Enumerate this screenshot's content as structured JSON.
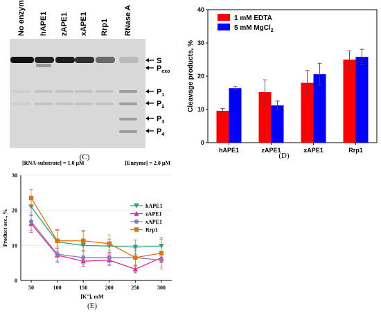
{
  "panels": {
    "c_label": "(C)",
    "d_label": "(D)",
    "e_label": "(E)"
  },
  "gel": {
    "lanes": [
      "No enzyme",
      "hAPE1",
      "zAPE1",
      "xAPE1",
      "Rrp1",
      "RNase A"
    ],
    "band_labels": [
      {
        "main": "S",
        "sub": ""
      },
      {
        "main": "P",
        "sub": "exo"
      },
      {
        "main": "P",
        "sub": "1"
      },
      {
        "main": "P",
        "sub": "2"
      },
      {
        "main": "P",
        "sub": "3"
      },
      {
        "main": "P",
        "sub": "4"
      }
    ],
    "colors": {
      "background": "#d8d8d8",
      "band": "#111111"
    }
  },
  "chart_data": [
    {
      "id": "D",
      "type": "bar",
      "categories": [
        "hAPE1",
        "zAPE1",
        "xAPE1",
        "Rrp1"
      ],
      "series": [
        {
          "name": "1 mM EDTA",
          "color": "#ff0000",
          "values": [
            9.6,
            15.2,
            18.0,
            25.0
          ],
          "errors": [
            0.7,
            3.7,
            3.7,
            2.6
          ]
        },
        {
          "name": "5 mM MgCl",
          "name_sub": "2",
          "color": "#0000ff",
          "values": [
            16.4,
            11.2,
            20.6,
            25.8
          ],
          "errors": [
            0.5,
            1.3,
            3.3,
            2.3
          ]
        }
      ],
      "ylabel": "Cleavage products, %",
      "ylim": [
        0,
        40
      ],
      "yticks": [
        0,
        10,
        20,
        30,
        40
      ],
      "legend": "top-left"
    },
    {
      "id": "E",
      "type": "line",
      "x": [
        50,
        100,
        150,
        200,
        250,
        300
      ],
      "xticks": [
        50,
        100,
        150,
        200,
        250,
        300
      ],
      "xlim": [
        30,
        320
      ],
      "ylim": [
        0,
        30
      ],
      "yticks": [
        0,
        10,
        20,
        30
      ],
      "xlabel": "[K",
      "xlabel_sup": "+",
      "xlabel_unit": "], mM",
      "ylabel": "Product acc., %",
      "annotation_left": "[RNA-substrate] = 1.0 μM",
      "annotation_right": "[Enzyme] = 2.0 μM",
      "legend": "right",
      "series": [
        {
          "name": "hAPE1",
          "color": "#20a080",
          "marker": "triangle-down",
          "values": [
            21.0,
            11.0,
            10.0,
            9.8,
            9.5,
            9.8
          ],
          "errors": [
            2.5,
            3.5,
            4.0,
            2.0,
            2.0,
            2.0
          ]
        },
        {
          "name": "zAPE1",
          "color": "#e02890",
          "marker": "triangle-up",
          "values": [
            16.2,
            7.2,
            5.5,
            5.8,
            3.2,
            6.5
          ],
          "errors": [
            2.5,
            2.0,
            1.5,
            1.5,
            1.0,
            1.5
          ]
        },
        {
          "name": "xAPE1",
          "color": "#8080c8",
          "marker": "circle",
          "values": [
            16.8,
            7.5,
            6.5,
            6.5,
            6.5,
            5.8
          ],
          "errors": [
            2.5,
            2.0,
            2.0,
            2.0,
            2.0,
            2.0
          ]
        },
        {
          "name": "Rrp1",
          "color": "#e07010",
          "marker": "square",
          "values": [
            23.5,
            11.3,
            11.3,
            10.5,
            6.5,
            7.8
          ],
          "errors": [
            2.5,
            3.0,
            3.0,
            2.5,
            2.5,
            4.5
          ]
        }
      ]
    }
  ]
}
